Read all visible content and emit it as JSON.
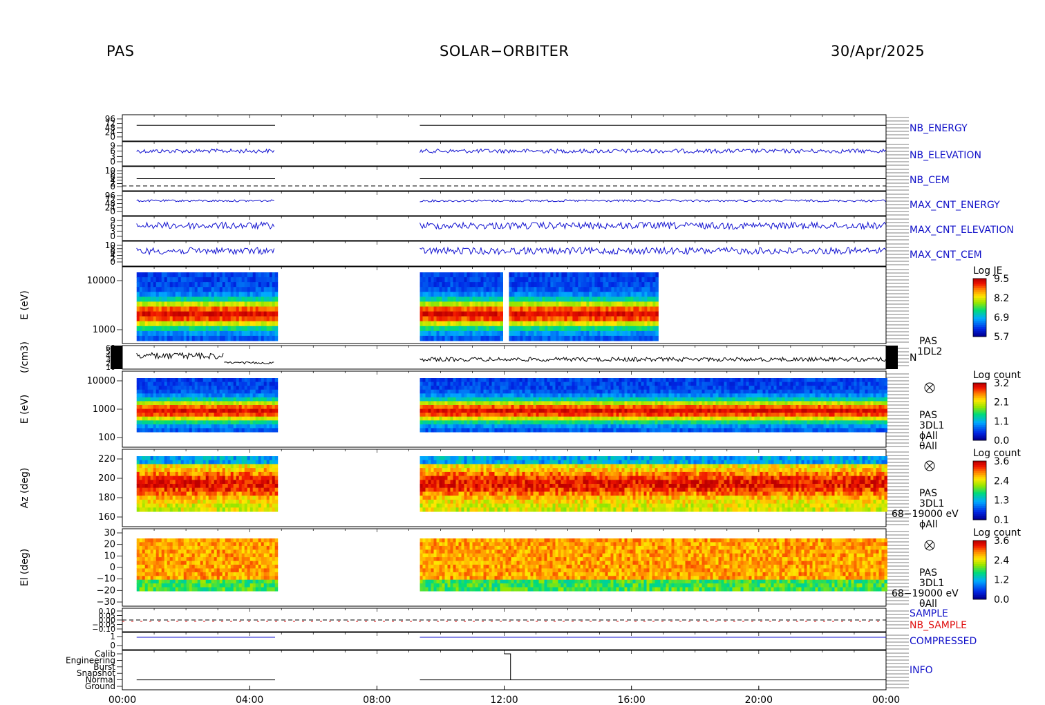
{
  "header": {
    "instrument": "PAS",
    "mission": "SOLAR−ORBITER",
    "date": "30/Apr/2025"
  },
  "colors": {
    "trace_blue": "#1010d0",
    "trace_black": "#000000",
    "label_blue": "#1010c8",
    "label_red": "#e01010"
  },
  "chart_data": {
    "type": "line",
    "x_ticks": [
      "00:00",
      "04:00",
      "08:00",
      "12:00",
      "16:00",
      "20:00",
      "00:00"
    ],
    "x_range_hours": [
      0,
      24
    ],
    "data_gap_hours": [
      4.8,
      9.35
    ],
    "panels": [
      {
        "id": "nb_energy",
        "label": "NB_ENERGY",
        "tick_labels": [
          "96",
          "72",
          "48",
          "24",
          "0"
        ]
      },
      {
        "id": "nb_elevation",
        "label": "NB_ELEVATION",
        "tick_labels": [
          "9",
          "6",
          "3",
          "0"
        ]
      },
      {
        "id": "nb_cem",
        "label": "NB_CEM",
        "tick_labels": [
          "10",
          "8",
          "6",
          "4",
          "2",
          "0"
        ]
      },
      {
        "id": "max_cnt_energy",
        "label": "MAX_CNT_ENERGY",
        "tick_labels": [
          "96",
          "72",
          "48",
          "24",
          "0"
        ]
      },
      {
        "id": "max_cnt_elevation",
        "label": "MAX_CNT_ELEVATION",
        "tick_labels": [
          "9",
          "6",
          "3",
          "0"
        ]
      },
      {
        "id": "max_cnt_cem",
        "label": "MAX_CNT_CEM",
        "tick_labels": [
          "10",
          "8",
          "6",
          "4",
          "2",
          "0"
        ]
      },
      {
        "id": "je_spectrogram",
        "ylabel": "E (eV)",
        "tick_labels": [
          "10000",
          "1000"
        ],
        "colorbar": {
          "title": "Log JE",
          "ticks": [
            "9.5",
            "8.2",
            "6.9",
            "5.7"
          ]
        }
      },
      {
        "id": "density",
        "ylabel": "(/cm3)",
        "tick_labels": [
          "60",
          "50",
          "40",
          "30",
          "20",
          "10"
        ],
        "side_label": [
          "PAS",
          "1DL2"
        ],
        "trace_label": "N"
      },
      {
        "id": "energy_spectrogram",
        "ylabel": "E (eV)",
        "tick_labels": [
          "10000",
          "1000",
          "100"
        ],
        "colorbar": {
          "title": "Log count",
          "ticks": [
            "3.2",
            "2.1",
            "1.1",
            "0.0"
          ]
        },
        "side_label": [
          "PAS",
          "3DL1",
          "ϕAll",
          "θAll"
        ]
      },
      {
        "id": "azimuth_spectrogram",
        "ylabel": "Az (deg)",
        "tick_labels": [
          "220",
          "200",
          "180",
          "160"
        ],
        "colorbar": {
          "title": "Log count",
          "ticks": [
            "3.6",
            "2.4",
            "1.3",
            "0.1"
          ]
        },
        "side_label": [
          "PAS",
          "3DL1",
          "68−19000 eV",
          "ϕAll"
        ]
      },
      {
        "id": "elevation_spectrogram",
        "ylabel": "El (deg)",
        "tick_labels": [
          "30",
          "20",
          "10",
          "0",
          "−10",
          "−20",
          "−30"
        ],
        "colorbar": {
          "title": "Log count",
          "ticks": [
            "3.6",
            "2.4",
            "1.2",
            "0.0"
          ]
        },
        "side_label": [
          "PAS",
          "3DL1",
          "68−19000 eV",
          "θAll"
        ]
      },
      {
        "id": "sample",
        "labels": [
          "SAMPLE",
          "NB_SAMPLE"
        ],
        "tick_labels": [
          "0.10",
          "0.05",
          "0.00",
          "−0.05",
          "−0.10"
        ]
      },
      {
        "id": "compressed",
        "label": "COMPRESSED",
        "tick_labels": [
          "1",
          "0"
        ]
      },
      {
        "id": "info",
        "label": "INFO",
        "tick_labels": [
          "Calib",
          "Engineering",
          "Burst",
          "Snapshot",
          "Normal",
          "Ground"
        ]
      }
    ]
  }
}
